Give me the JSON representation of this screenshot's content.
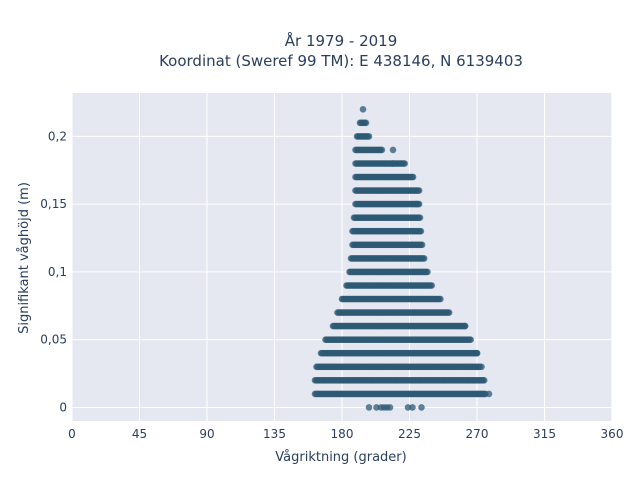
{
  "chart_data": {
    "type": "scatter",
    "title_line1": "År 1979 - 2019",
    "title_line2": "Koordinat (Sweref 99 TM): E 438146, N 6139403",
    "xlabel": "Vågriktning (grader)",
    "ylabel": "Signifikant våghöjd (m)",
    "xlim": [
      0,
      360
    ],
    "ylim": [
      -0.01,
      0.232
    ],
    "grid": true,
    "x_ticks": [
      0,
      45,
      90,
      135,
      180,
      225,
      270,
      315,
      360
    ],
    "y_ticks": [
      0,
      0.05,
      0.1,
      0.15,
      0.2
    ],
    "y_tick_labels": [
      "0",
      "0,05",
      "0,1",
      "0,15",
      "0,2"
    ],
    "marker_color": "#2e5a74",
    "plot_bg": "#e5e8f1",
    "y_step": 0.01,
    "bands": [
      {
        "y": 0.0,
        "xmin": 198,
        "xmax": 234,
        "sparse": true
      },
      {
        "y": 0.01,
        "xmin": 162,
        "xmax": 276
      },
      {
        "y": 0.02,
        "xmin": 162,
        "xmax": 275
      },
      {
        "y": 0.03,
        "xmin": 163,
        "xmax": 272
      },
      {
        "y": 0.04,
        "xmin": 166,
        "xmax": 270
      },
      {
        "y": 0.05,
        "xmin": 169,
        "xmax": 266
      },
      {
        "y": 0.06,
        "xmin": 174,
        "xmax": 262
      },
      {
        "y": 0.07,
        "xmin": 177,
        "xmax": 252
      },
      {
        "y": 0.08,
        "xmin": 180,
        "xmax": 246
      },
      {
        "y": 0.09,
        "xmin": 183,
        "xmax": 240
      },
      {
        "y": 0.1,
        "xmin": 185,
        "xmax": 237
      },
      {
        "y": 0.11,
        "xmin": 186,
        "xmax": 235
      },
      {
        "y": 0.12,
        "xmin": 187,
        "xmax": 234
      },
      {
        "y": 0.13,
        "xmin": 187,
        "xmax": 233
      },
      {
        "y": 0.14,
        "xmin": 188,
        "xmax": 232
      },
      {
        "y": 0.15,
        "xmin": 189,
        "xmax": 232
      },
      {
        "y": 0.16,
        "xmin": 189,
        "xmax": 232
      },
      {
        "y": 0.17,
        "xmin": 189,
        "xmax": 228
      },
      {
        "y": 0.18,
        "xmin": 189,
        "xmax": 222
      },
      {
        "y": 0.19,
        "xmin": 189,
        "xmax": 207
      },
      {
        "y": 0.2,
        "xmin": 190,
        "xmax": 198
      },
      {
        "y": 0.21,
        "xmin": 192,
        "xmax": 196
      },
      {
        "y": 0.22,
        "xmin": 194,
        "xmax": 194
      }
    ],
    "extra_points": [
      {
        "x": 214,
        "y": 0.19
      },
      {
        "x": 214,
        "y": 0.18
      },
      {
        "x": 230,
        "y": 0.15
      },
      {
        "x": 262,
        "y": 0.06
      },
      {
        "x": 270,
        "y": 0.04
      },
      {
        "x": 273,
        "y": 0.03
      },
      {
        "x": 278,
        "y": 0.01
      }
    ]
  }
}
